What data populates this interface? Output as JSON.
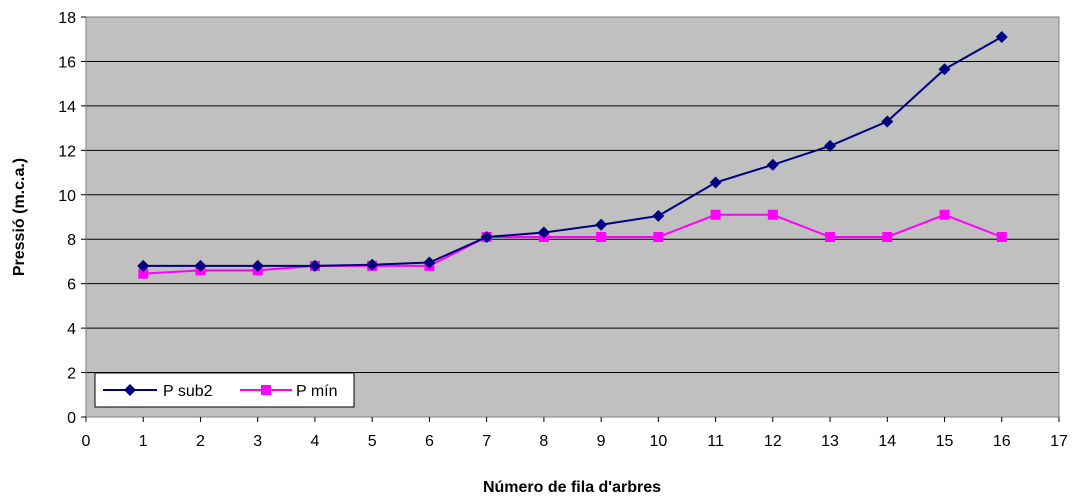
{
  "chart_data": {
    "type": "line",
    "xlabel": "Número de fila d'arbres",
    "ylabel": "Pressió (m.c.a.)",
    "xlim": [
      0,
      17
    ],
    "ylim": [
      0,
      18
    ],
    "xticks": [
      "0",
      "1",
      "2",
      "3",
      "4",
      "5",
      "6",
      "7",
      "8",
      "9",
      "10",
      "11",
      "12",
      "13",
      "14",
      "15",
      "16",
      "17"
    ],
    "yticks": [
      "0",
      "2",
      "4",
      "6",
      "8",
      "10",
      "12",
      "14",
      "16",
      "18"
    ],
    "grid": "horizontal",
    "legend_position": "bottom-left",
    "plot_background": "#c0c0c0",
    "series": [
      {
        "name": "P sub2",
        "color": "#000080",
        "marker": "diamond",
        "x": [
          1,
          2,
          3,
          4,
          5,
          6,
          7,
          8,
          9,
          10,
          11,
          12,
          13,
          14,
          15,
          16
        ],
        "values": [
          6.8,
          6.8,
          6.8,
          6.8,
          6.85,
          6.95,
          8.1,
          8.3,
          8.65,
          9.05,
          10.55,
          11.35,
          12.2,
          13.3,
          15.65,
          17.1
        ]
      },
      {
        "name": "P mín",
        "color": "#ff00ff",
        "marker": "square",
        "x": [
          1,
          2,
          3,
          4,
          5,
          6,
          7,
          8,
          9,
          10,
          11,
          12,
          13,
          14,
          15,
          16
        ],
        "values": [
          6.45,
          6.6,
          6.6,
          6.8,
          6.8,
          6.8,
          8.1,
          8.1,
          8.1,
          8.1,
          9.1,
          9.1,
          8.1,
          8.1,
          9.1,
          8.1
        ]
      }
    ]
  }
}
